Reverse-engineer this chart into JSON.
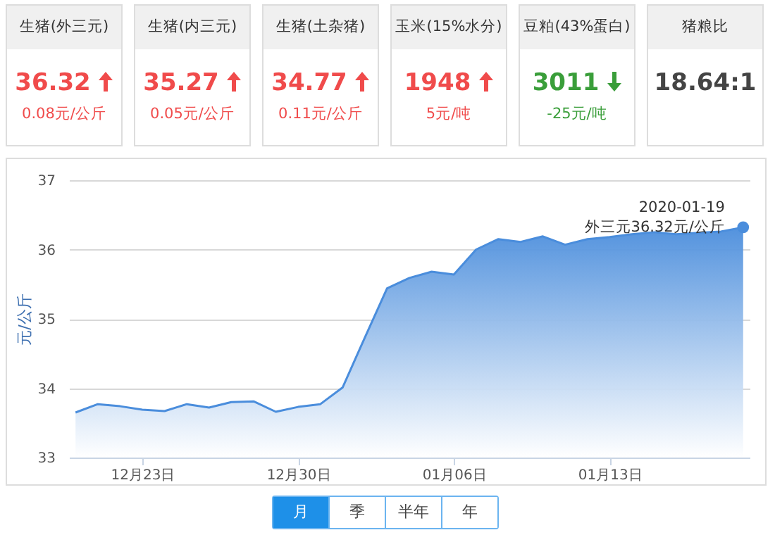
{
  "chart_data": [
    {
      "type": "other",
      "categories": [
        "生猪(外三元)",
        "生猪(内三元)",
        "生猪(土杂猪)",
        "玉米(15%水分)",
        "豆粕(43%蛋白)",
        "猪粮比"
      ],
      "value_labels": [
        "36.32",
        "35.27",
        "34.77",
        "1948",
        "3011",
        "18.64:1"
      ],
      "annotations": [
        "0.08元/公斤",
        "0.05元/公斤",
        "0.11元/公斤",
        "5元/吨",
        "-25元/吨"
      ]
    },
    {
      "type": "area",
      "ylabel": "元/公斤",
      "color": "#4a8ddc",
      "grid": "y",
      "marker": "none",
      "x": [
        "2019-12-20",
        "2019-12-21",
        "2019-12-22",
        "2019-12-23",
        "2019-12-24",
        "2019-12-25",
        "2019-12-26",
        "2019-12-27",
        "2019-12-28",
        "2019-12-29",
        "2019-12-30",
        "2019-12-31",
        "2020-01-01",
        "2020-01-02",
        "2020-01-03",
        "2020-01-04",
        "2020-01-05",
        "2020-01-06",
        "2020-01-07",
        "2020-01-08",
        "2020-01-09",
        "2020-01-10",
        "2020-01-11",
        "2020-01-12",
        "2020-01-13",
        "2020-01-14",
        "2020-01-15",
        "2020-01-16",
        "2020-01-17",
        "2020-01-18",
        "2020-01-19"
      ],
      "values": [
        33.65,
        33.77,
        33.74,
        33.69,
        33.67,
        33.77,
        33.72,
        33.8,
        33.81,
        33.66,
        33.73,
        33.77,
        34.01,
        34.73,
        35.44,
        35.59,
        35.68,
        35.64,
        36.0,
        36.15,
        36.11,
        36.19,
        36.07,
        36.15,
        36.18,
        36.22,
        36.25,
        36.22,
        36.24,
        36.26,
        36.32
      ],
      "xlim": [
        "2019-12-19T17:00",
        "2020-01-19T07:00"
      ],
      "xticks": [
        {
          "value": "2019-12-23",
          "label": "12月23日"
        },
        {
          "value": "2019-12-30",
          "label": "12月30日"
        },
        {
          "value": "2020-01-06",
          "label": "01月06日"
        },
        {
          "value": "2020-01-13",
          "label": "01月13日"
        }
      ],
      "ylim": [
        33,
        37
      ],
      "yticks": [
        33,
        34,
        35,
        36,
        37
      ],
      "annotations": [
        {
          "text": "2020-01-19\n外三元36.32元/公斤",
          "x": "2020-01-19",
          "y": 36.32
        },
        "月",
        "季",
        "半年",
        "年"
      ]
    }
  ]
}
